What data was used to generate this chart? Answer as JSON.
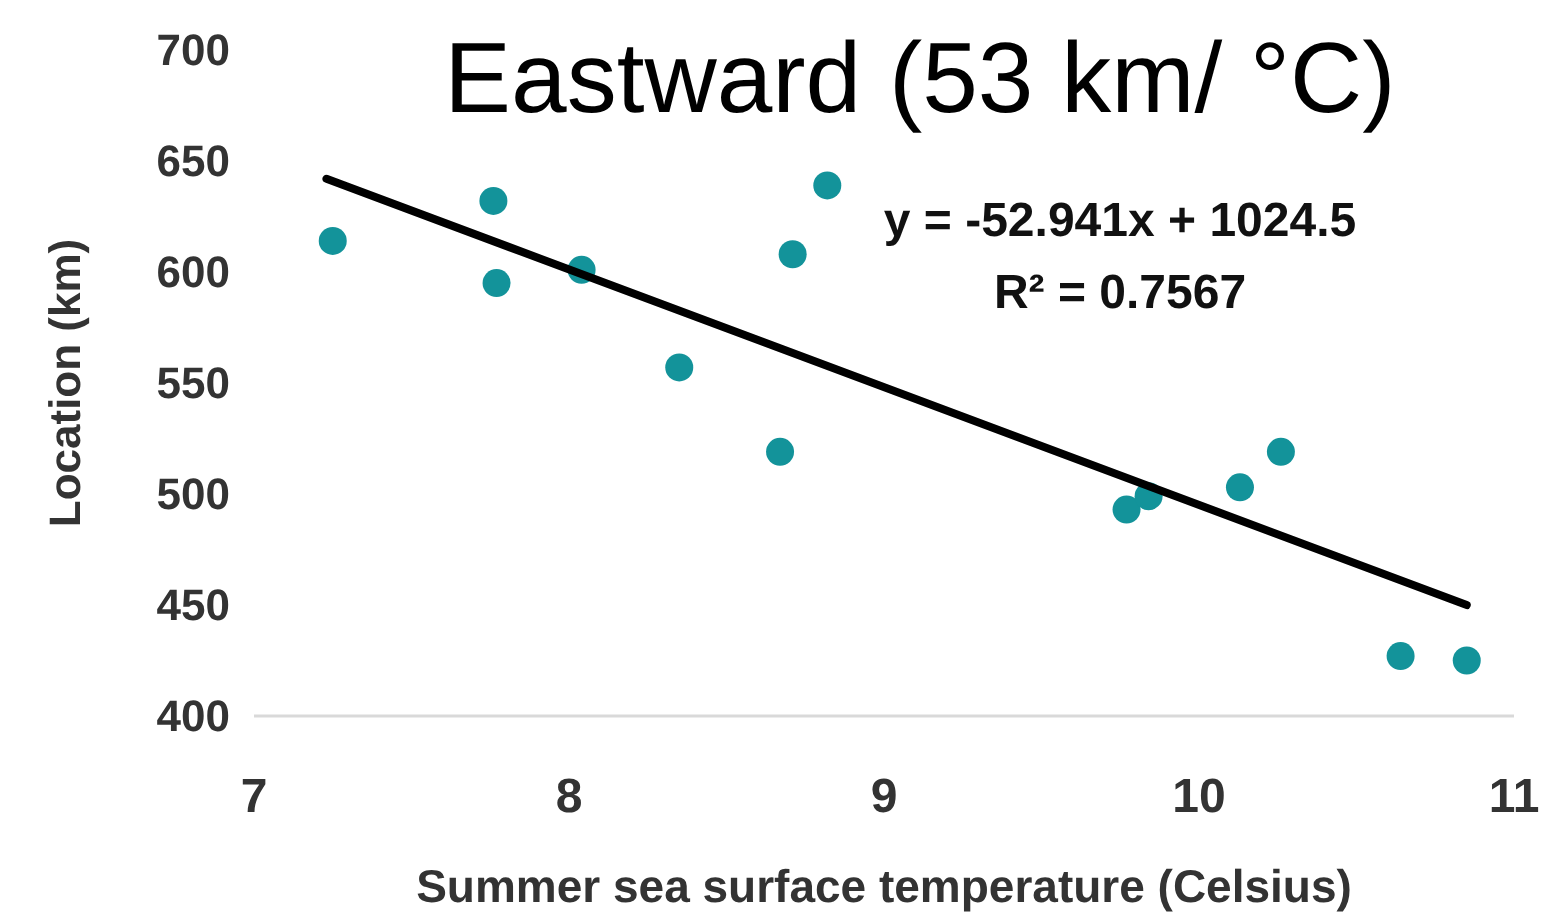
{
  "chart_data": {
    "type": "scatter",
    "title": "Eastward (53 km/ °C)",
    "xlabel": "Summer sea surface temperature (Celsius)",
    "ylabel": "Location (km)",
    "xlim": [
      7,
      11
    ],
    "xticks": [
      7,
      8,
      9,
      10,
      11
    ],
    "ylim": [
      400,
      700
    ],
    "yticks": [
      400,
      450,
      500,
      550,
      600,
      650,
      700
    ],
    "grid": false,
    "annotations": [
      "y = -52.941x + 1024.5",
      "R² = 0.7567"
    ],
    "series": [
      {
        "color": "#13939a",
        "marker": "circle",
        "x": [
          7.25,
          7.76,
          7.77,
          8.04,
          8.35,
          8.67,
          8.71,
          8.82,
          9.77,
          9.84,
          10.13,
          10.26,
          10.64,
          10.85
        ],
        "values": [
          614,
          632,
          595,
          601,
          557,
          519,
          608,
          639,
          493,
          499,
          503,
          519,
          427,
          425
        ]
      },
      {
        "type": "line",
        "color": "#000000",
        "line_style": "solid",
        "x": [
          7.23,
          10.85
        ],
        "values": [
          642,
          450
        ]
      }
    ]
  }
}
